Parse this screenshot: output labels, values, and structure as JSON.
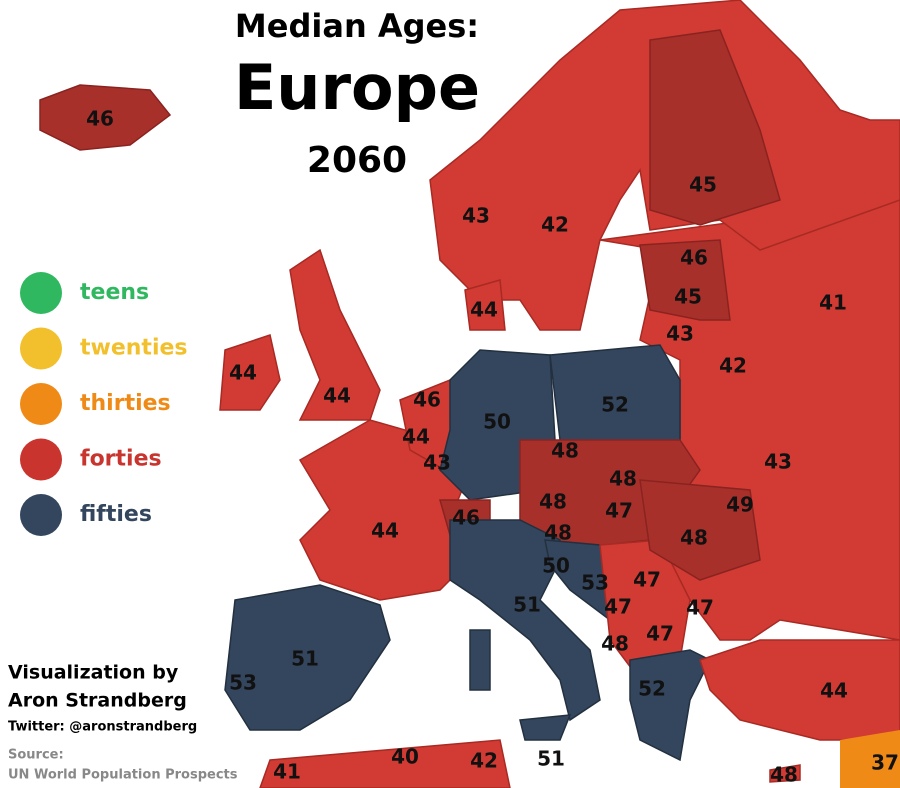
{
  "header": {
    "title": "Median Ages:",
    "region": "Europe",
    "year": "2060"
  },
  "legend": [
    {
      "label": "teens",
      "color": "#2fb860"
    },
    {
      "label": "twenties",
      "color": "#f2c02c"
    },
    {
      "label": "thirties",
      "color": "#ef8a17"
    },
    {
      "label": "forties",
      "color": "#c9342e"
    },
    {
      "label": "fifties",
      "color": "#34465e"
    }
  ],
  "labels": [
    46,
    45,
    43,
    42,
    46,
    45,
    41,
    44,
    43,
    42,
    44,
    44,
    46,
    50,
    52,
    44,
    43,
    48,
    48,
    43,
    49,
    48,
    47,
    46,
    48,
    48,
    44,
    50,
    53,
    47,
    51,
    47,
    47,
    47,
    48,
    51,
    53,
    52,
    44,
    40,
    42,
    51,
    41,
    48,
    37
  ],
  "credits": {
    "line1": "Visualization by",
    "line2": "Aron Strandberg",
    "twitter": "Twitter: @aronstrandberg",
    "source_label": "Source:",
    "source": "UN World Population Prospects"
  }
}
